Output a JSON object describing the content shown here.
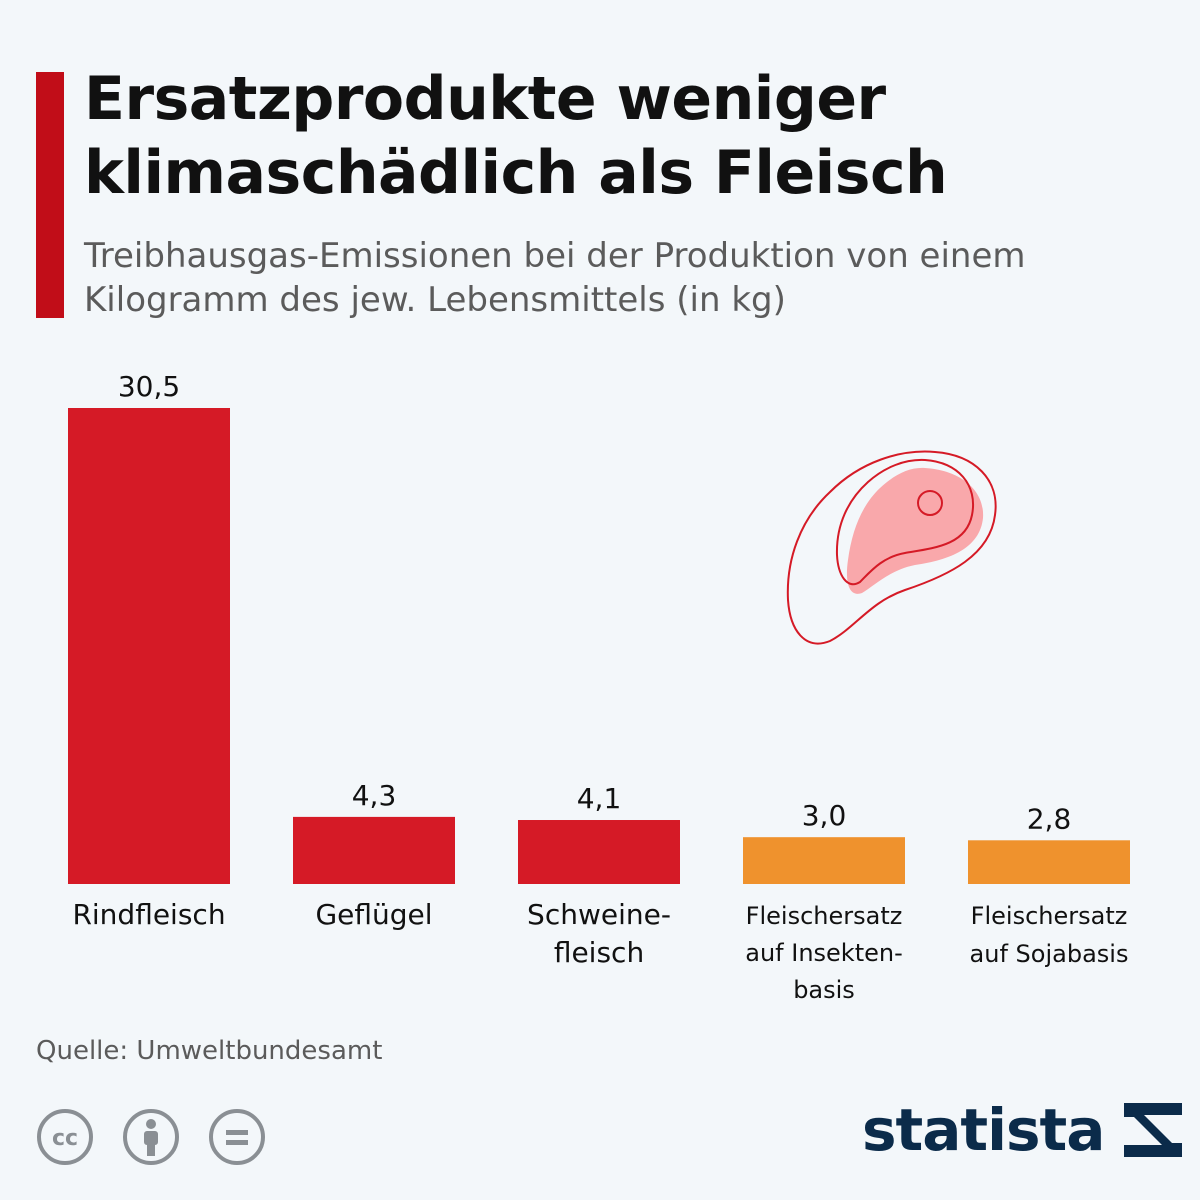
{
  "header": {
    "title": "Ersatzprodukte weniger klimaschädlich als Fleisch",
    "subtitle": "Treibhausgas-Emissionen bei der Produktion von einem Kilogramm des jew. Lebensmittels (in kg)"
  },
  "colors": {
    "accent": "#c10d18",
    "meat": "#d51a26",
    "substitute": "#ef922d",
    "icon_fill": "#f9a8ab",
    "icon_stroke": "#d51a26",
    "brand": "#0b2b4a"
  },
  "chart_data": {
    "type": "bar",
    "categories": [
      "Rindfleisch",
      "Geflügel",
      "Schweine-fleisch",
      "Fleischersatz auf Insekten-basis",
      "Fleischersatz auf Sojabasis"
    ],
    "category_lines": [
      [
        "Rindfleisch"
      ],
      [
        "Geflügel"
      ],
      [
        "Schweine-",
        "fleisch"
      ],
      [
        "Fleischersatz",
        "auf Insekten-",
        "basis"
      ],
      [
        "Fleischersatz",
        "auf Sojabasis"
      ]
    ],
    "values": [
      30.5,
      4.3,
      4.1,
      3.0,
      2.8
    ],
    "value_labels": [
      "30,5",
      "4,3",
      "4,1",
      "3,0",
      "2,8"
    ],
    "groups": [
      "meat",
      "meat",
      "meat",
      "substitute",
      "substitute"
    ],
    "ylim": [
      0,
      30.5
    ],
    "grid": false,
    "legend": "none"
  },
  "illustration": {
    "icon": "steak-icon"
  },
  "footer": {
    "source": "Quelle: Umweltbundesamt",
    "licenses": [
      "cc-icon",
      "attribution-icon",
      "no-derivatives-icon"
    ],
    "brand": "statista"
  }
}
